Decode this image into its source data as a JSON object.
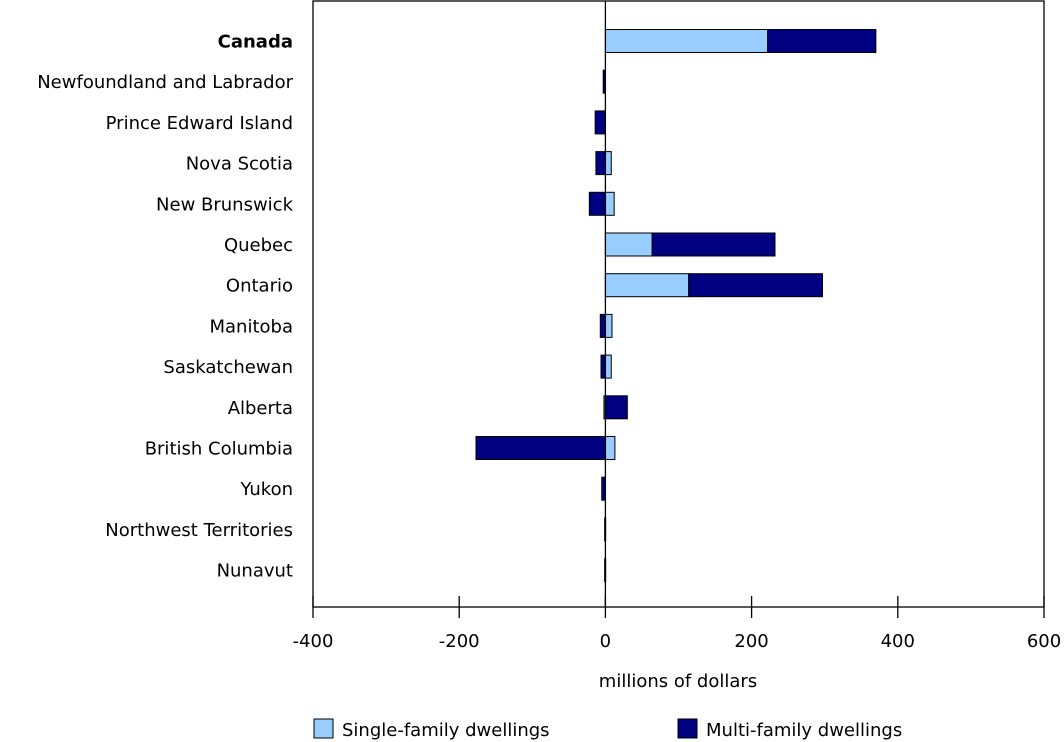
{
  "chart_data": {
    "type": "bar",
    "orientation": "horizontal",
    "stacked": true,
    "categories": [
      "Canada",
      "Newfoundland and Labrador",
      "Prince Edward Island",
      "Nova Scotia",
      "New Brunswick",
      "Quebec",
      "Ontario",
      "Manitoba",
      "Saskatchewan",
      "Alberta",
      "British Columbia",
      "Yukon",
      "Northwest Territories",
      "Nunavut"
    ],
    "bold_categories": [
      "Canada"
    ],
    "series": [
      {
        "name": "Single-family dwellings",
        "color": "#99ccff",
        "values": [
          222,
          0,
          0,
          8,
          12,
          64,
          114,
          9,
          8,
          -2,
          13,
          0,
          0,
          0
        ]
      },
      {
        "name": "Multi-family dwellings",
        "color": "#000080",
        "values": [
          148,
          -3,
          -14,
          -13,
          -22,
          168,
          183,
          -7,
          -6,
          30,
          -177,
          -5,
          -1,
          -1
        ]
      }
    ],
    "xlabel": "millions of dollars",
    "ylabel": "",
    "xlim": [
      -400,
      600
    ],
    "xticks": [
      -400,
      -200,
      0,
      200,
      400,
      600
    ],
    "grid": false,
    "legend_position": "bottom"
  }
}
